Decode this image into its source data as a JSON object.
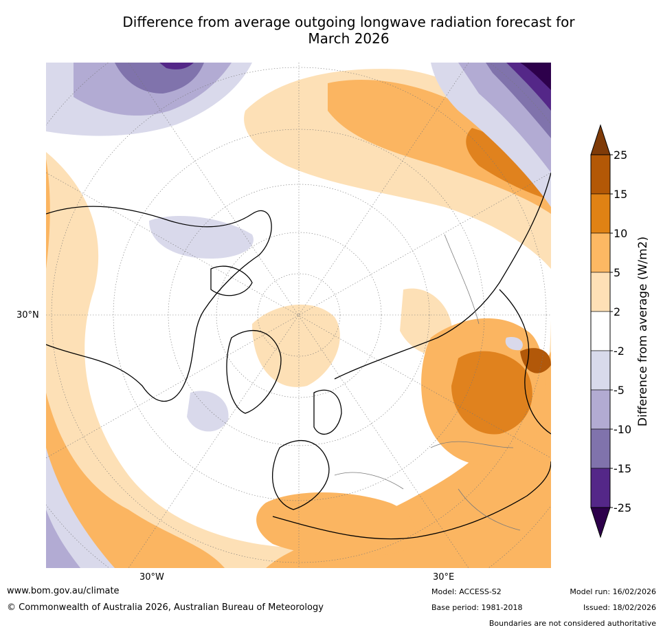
{
  "title": {
    "line1": "Difference from average outgoing longwave radiation forecast for",
    "line2": "March 2026"
  },
  "map": {
    "projection": "north polar stereographic",
    "lat_label": "30°N",
    "lon_labels": {
      "west": "30°W",
      "east": "30°E"
    },
    "colors": {
      "ocean_base": "#ffffff",
      "p2_5": "#fde0b6",
      "p5_10": "#fbb561",
      "p10_15": "#e0821e",
      "p15_25": "#b25809",
      "n2_5": "#d9d9eb",
      "n5_10": "#b2abd3",
      "n10_15": "#8073ac",
      "n15_25": "#542788",
      "n25": "#2d004b"
    }
  },
  "colorbar": {
    "title": "Difference from average (W/m2)",
    "tick_labels": [
      "25",
      "15",
      "10",
      "5",
      "2",
      "-2",
      "-5",
      "-10",
      "-15",
      "-25"
    ],
    "segments_top_to_bottom": [
      "#7f3b08",
      "#b35806",
      "#e08214",
      "#fdb863",
      "#fee0b6",
      "#ffffff",
      "#d8daeb",
      "#b2abd2",
      "#8073ac",
      "#542788",
      "#2d004b"
    ]
  },
  "footer": {
    "url": "www.bom.gov.au/climate",
    "copyright": "© Commonwealth of Australia 2026, Australian Bureau of Meteorology",
    "model": "Model: ACCESS-S2",
    "base_period": "Base period: 1981-2018",
    "model_run": "Model run: 16/02/2026",
    "issued": "Issued: 18/02/2026",
    "disclaimer": "Boundaries are not considered authoritative"
  }
}
